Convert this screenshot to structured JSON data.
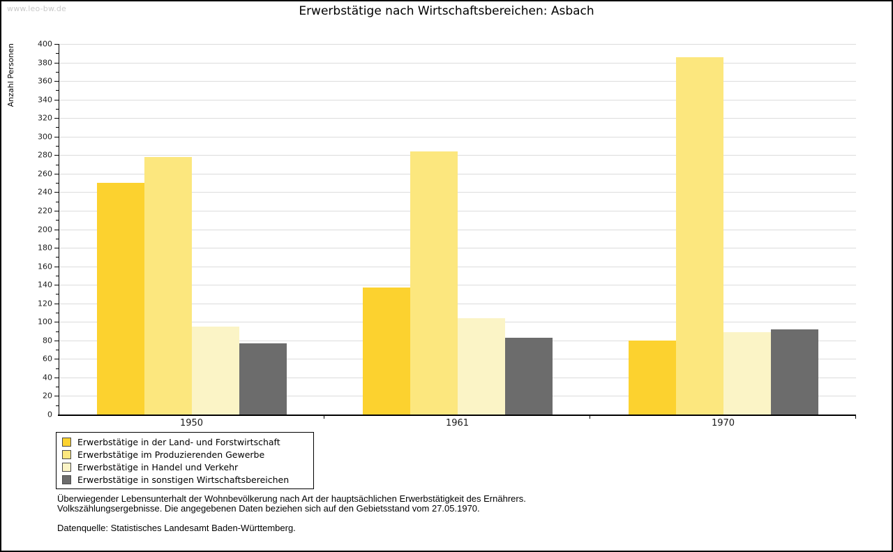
{
  "watermark": "www.leo-bw.de",
  "title": "Erwerbstätige nach Wirtschaftsbereichen: Asbach",
  "chart_data": {
    "type": "bar",
    "title": "Erwerbstätige nach Wirtschaftsbereichen: Asbach",
    "xlabel": "",
    "ylabel": "Anzahl Personen",
    "ylim": [
      0,
      400
    ],
    "ytick_step": 20,
    "minor_tick_step": 10,
    "grid": true,
    "legend_position": "bottom-left",
    "categories": [
      "1950",
      "1961",
      "1970"
    ],
    "series": [
      {
        "key": "land-und-forstwirtschaft",
        "name": "Erwerbstätige in der Land- und Forstwirtschaft",
        "color": "#FCD22F",
        "values": [
          250,
          137,
          80
        ]
      },
      {
        "key": "produzierendes-gewerbe",
        "name": "Erwerbstätige im Produzierenden Gewerbe",
        "color": "#FCE77E",
        "values": [
          278,
          284,
          386
        ]
      },
      {
        "key": "handel-und-verkehr",
        "name": "Erwerbstätige in Handel und Verkehr",
        "color": "#FBF4C6",
        "values": [
          95,
          104,
          89
        ]
      },
      {
        "key": "sonstige-wirtschaftsbereiche",
        "name": "Erwerbstätige in sonstigen Wirtschaftsbereichen",
        "color": "#6C6C6C",
        "values": [
          77,
          83,
          92
        ]
      }
    ],
    "colors": {
      "gridline": "#DCDCDC",
      "axis": "#000000",
      "watermark": "#C9C9C9"
    }
  },
  "footer": {
    "line1": "Überwiegender Lebensunterhalt der Wohnbevölkerung nach Art der hauptsächlichen Erwerbstätigkeit des Ernährers.",
    "line2": "Volkszählungsergebnisse. Die angegebenen Daten beziehen sich auf den Gebietsstand vom 27.05.1970.",
    "source": "Datenquelle: Statistisches Landesamt Baden-Württemberg."
  }
}
